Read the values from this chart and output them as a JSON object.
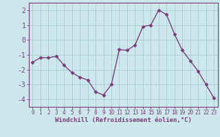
{
  "x": [
    0,
    1,
    2,
    3,
    4,
    5,
    6,
    7,
    8,
    9,
    10,
    11,
    12,
    13,
    14,
    15,
    16,
    17,
    18,
    19,
    20,
    21,
    22,
    23
  ],
  "y": [
    -1.5,
    -1.2,
    -1.2,
    -1.1,
    -1.7,
    -2.2,
    -2.5,
    -2.7,
    -3.5,
    -3.7,
    -3.0,
    -0.65,
    -0.7,
    -0.35,
    0.9,
    1.0,
    2.0,
    1.7,
    0.4,
    -0.7,
    -1.4,
    -2.1,
    -3.0,
    -3.9
  ],
  "line_color": "#7a3b7a",
  "marker": "D",
  "marker_size": 2.5,
  "bg_color": "#cce8ec",
  "grid_color": "#aacccc",
  "xlabel": "Windchill (Refroidissement éolien,°C)",
  "xlabel_color": "#7a3b7a",
  "tick_color": "#7a3b7a",
  "spine_color": "#7a3b7a",
  "ylim": [
    -4.5,
    2.5
  ],
  "xlim": [
    -0.5,
    23.5
  ],
  "yticks": [
    -4,
    -3,
    -2,
    -1,
    0,
    1,
    2
  ],
  "xticks": [
    0,
    1,
    2,
    3,
    4,
    5,
    6,
    7,
    8,
    9,
    10,
    11,
    12,
    13,
    14,
    15,
    16,
    17,
    18,
    19,
    20,
    21,
    22,
    23
  ],
  "line_width": 1.0,
  "ytick_fontsize": 7.0,
  "xtick_fontsize": 5.5,
  "xlabel_fontsize": 6.5
}
